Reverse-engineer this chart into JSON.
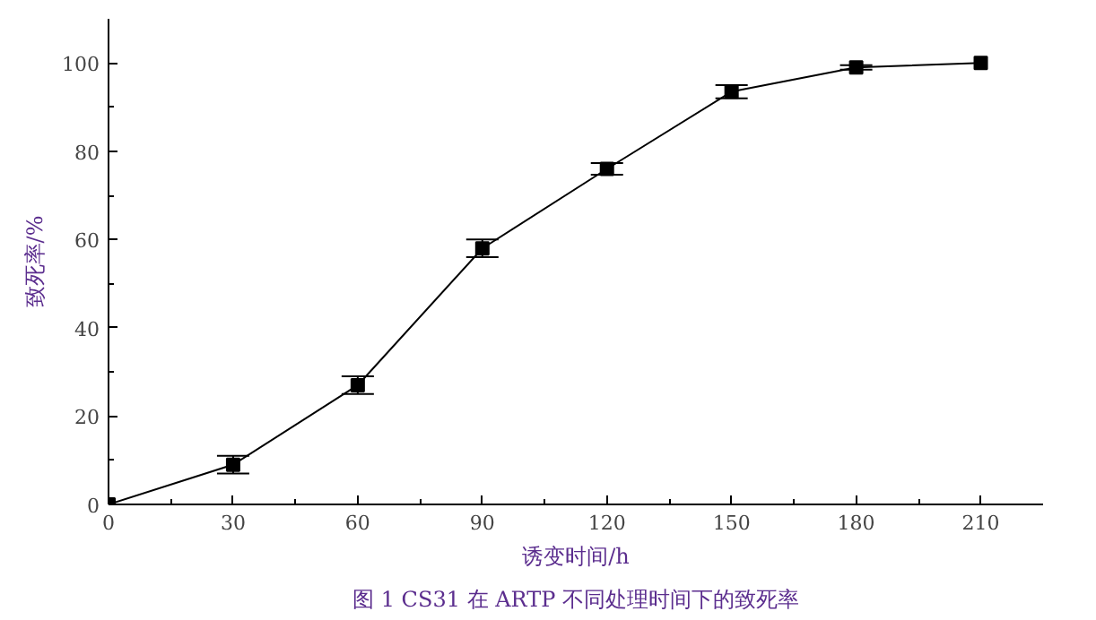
{
  "chart_data": {
    "type": "line",
    "xlabel": "诱变时间/h",
    "ylabel": "致死率/%",
    "annotations": [
      "图 1 CS31 在 ARTP 不同处理时间下的致死率"
    ],
    "x": [
      0,
      30,
      60,
      90,
      120,
      150,
      180,
      210
    ],
    "series": [
      {
        "color": "#000000",
        "values": [
          0,
          9,
          27,
          58,
          76,
          93.5,
          99,
          100
        ],
        "errors": [
          null,
          2,
          2,
          2,
          1.3,
          1.5,
          0.5,
          null
        ]
      }
    ],
    "xlim": [
      0,
      225
    ],
    "ylim": [
      0,
      110
    ],
    "xticks": [
      0,
      30,
      60,
      90,
      120,
      150,
      180,
      210
    ],
    "yticks": [
      0,
      20,
      40,
      60,
      80,
      100
    ],
    "marker": "square",
    "line_style": "solid",
    "grid": false
  }
}
